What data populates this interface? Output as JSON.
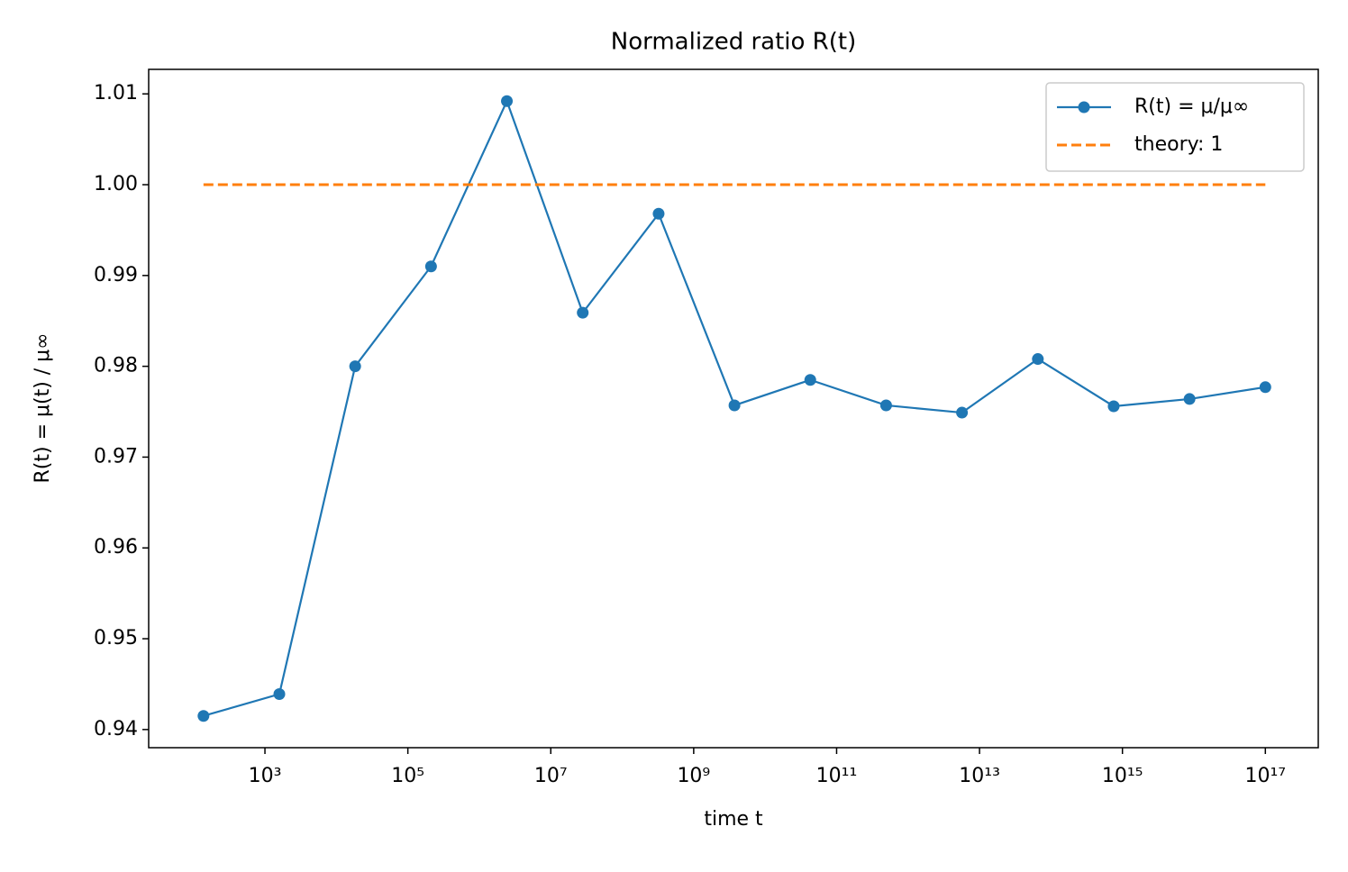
{
  "chart_data": {
    "type": "line",
    "title": "Normalized ratio R(t)",
    "xlabel": "time t",
    "ylabel": "R(t) = μ(t) / μ∞",
    "xscale": "log",
    "x": [
      138,
      1590,
      18300,
      211000,
      2430000,
      28000000,
      323000000,
      3720000000,
      42800000000,
      493000000000,
      5680000000000,
      65500000000000,
      754000000000000,
      8690000000000000,
      100000000000000000
    ],
    "series": [
      {
        "name": "R(t) = μ/μ∞",
        "color": "#1f77b4",
        "marker": "o",
        "dash": "solid",
        "values": [
          0.9415,
          0.9439,
          0.98,
          0.991,
          1.0092,
          0.9859,
          0.9968,
          0.9757,
          0.9785,
          0.9757,
          0.9749,
          0.9808,
          0.9756,
          0.9764,
          0.9777
        ]
      },
      {
        "name": "theory: 1",
        "color": "#ff7f0e",
        "marker": "none",
        "dash": "dashed",
        "values": [
          1,
          1,
          1,
          1,
          1,
          1,
          1,
          1,
          1,
          1,
          1,
          1,
          1,
          1,
          1
        ]
      }
    ],
    "xlim": [
      23.6,
      550000000000000000
    ],
    "ylim": [
      0.938,
      1.0127
    ],
    "xticks": [
      {
        "value": 1000,
        "label": "10³"
      },
      {
        "value": 100000,
        "label": "10⁵"
      },
      {
        "value": 10000000,
        "label": "10⁷"
      },
      {
        "value": 1000000000,
        "label": "10⁹"
      },
      {
        "value": 100000000000,
        "label": "10¹¹"
      },
      {
        "value": 10000000000000,
        "label": "10¹³"
      },
      {
        "value": 1000000000000000,
        "label": "10¹⁵"
      },
      {
        "value": 100000000000000000,
        "label": "10¹⁷"
      }
    ],
    "yticks": [
      0.94,
      0.95,
      0.96,
      0.97,
      0.98,
      0.99,
      {
        "value": 1,
        "label": "1.00"
      },
      1.01
    ],
    "grid": false,
    "legend": "upper right"
  }
}
